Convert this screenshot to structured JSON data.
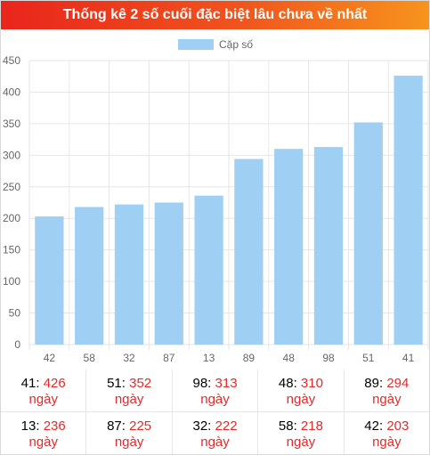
{
  "title": "Thống kê 2 số cuối đặc biệt lâu chưa về nhất",
  "chart_data": {
    "type": "bar",
    "title": "Thống kê 2 số cuối đặc biệt lâu chưa về nhất",
    "legend": {
      "position": "top",
      "entries": [
        "Cặp số"
      ]
    },
    "categories": [
      "42",
      "58",
      "32",
      "87",
      "13",
      "89",
      "48",
      "98",
      "51",
      "41"
    ],
    "series": [
      {
        "name": "Cặp số",
        "values": [
          203,
          218,
          222,
          225,
          236,
          294,
          310,
          313,
          352,
          426
        ],
        "color": "#9fcff3"
      }
    ],
    "yticks": [
      "0",
      "50",
      "100",
      "150",
      "200",
      "250",
      "300",
      "350",
      "400",
      "450"
    ],
    "ylim": [
      0,
      450
    ],
    "grid": true,
    "xlabel": "",
    "ylabel": ""
  },
  "stats": {
    "unit_label": "ngày",
    "rows": [
      [
        {
          "number": "41",
          "count": "426"
        },
        {
          "number": "51",
          "count": "352"
        },
        {
          "number": "98",
          "count": "313"
        },
        {
          "number": "48",
          "count": "310"
        },
        {
          "number": "89",
          "count": "294"
        }
      ],
      [
        {
          "number": "13",
          "count": "236"
        },
        {
          "number": "87",
          "count": "225"
        },
        {
          "number": "32",
          "count": "222"
        },
        {
          "number": "58",
          "count": "218"
        },
        {
          "number": "42",
          "count": "203"
        }
      ]
    ]
  },
  "colors": {
    "header_start": "#e9251c",
    "header_end": "#f7941d",
    "bar": "#9fcff3",
    "count_text": "#e02b2b",
    "grid": "#e6e6e6"
  }
}
